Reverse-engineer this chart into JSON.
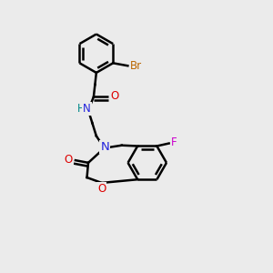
{
  "bg_color": "#ebebeb",
  "bond_color": "#000000",
  "bond_width": 1.8,
  "atom_colors": {
    "C": "#000000",
    "N": "#2222dd",
    "O": "#dd0000",
    "Br": "#bb6600",
    "F": "#cc00cc",
    "H": "#008888"
  },
  "font_size": 8.5,
  "fig_size": [
    3.0,
    3.0
  ],
  "dpi": 100
}
